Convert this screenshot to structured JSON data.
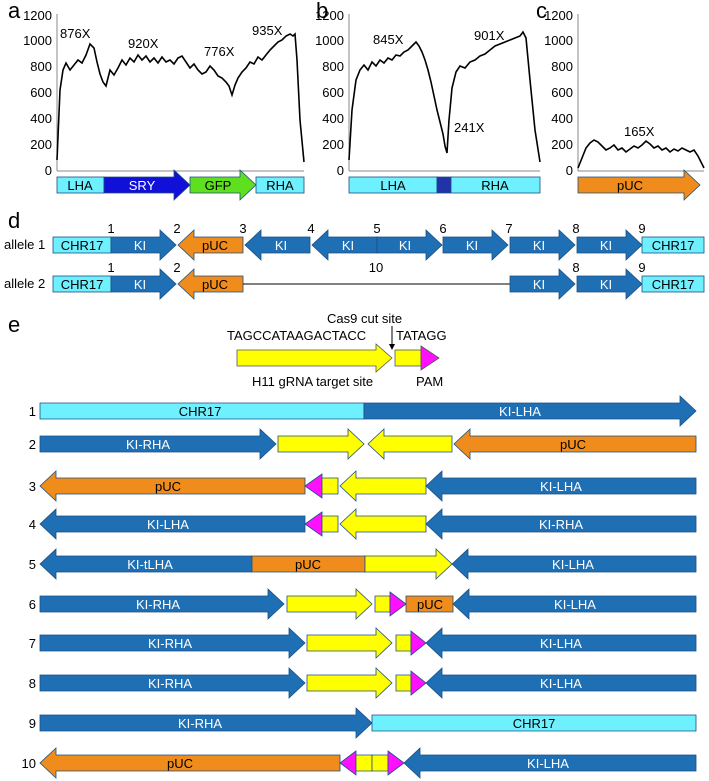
{
  "colors": {
    "cyan": "#6ff0ff",
    "blue": "#1f6fb5",
    "darkblue": "#1010d8",
    "green": "#5fe01f",
    "orange": "#f08c1c",
    "yellow": "#ffff00",
    "magenta": "#ff10ff",
    "navy": "#2233aa"
  },
  "panel_a": {
    "letter": "a",
    "yticks": [
      "0",
      "200",
      "400",
      "600",
      "800",
      "1000",
      "1200"
    ],
    "labels": [
      "876X",
      "920X",
      "776X",
      "935X"
    ],
    "segments": [
      "LHA",
      "SRY",
      "GFP",
      "RHA"
    ]
  },
  "panel_b": {
    "letter": "b",
    "yticks": [
      "0",
      "200",
      "400",
      "600",
      "800",
      "1000",
      "1200"
    ],
    "labels": [
      "845X",
      "901X",
      "241X"
    ],
    "segments": [
      "LHA",
      "RHA"
    ]
  },
  "panel_c": {
    "letter": "c",
    "yticks": [
      "0",
      "200",
      "400",
      "600",
      "800",
      "1000",
      "1200"
    ],
    "labels": [
      "165X"
    ],
    "segments": [
      "pUC"
    ]
  },
  "panel_d": {
    "letter": "d",
    "allele1": {
      "label": "allele 1",
      "blocks": [
        "CHR17",
        "KI",
        "pUC",
        "KI",
        "KI",
        "KI",
        "KI",
        "KI",
        "KI",
        "CHR17"
      ],
      "numbers": [
        "1",
        "2",
        "3",
        "4",
        "5",
        "6",
        "7",
        "8",
        "9"
      ]
    },
    "allele2": {
      "label": "allele 2",
      "blocks": [
        "CHR17",
        "KI",
        "pUC",
        "KI",
        "KI",
        "CHR17"
      ],
      "numbers": [
        "1",
        "2",
        "10",
        "8",
        "9"
      ]
    }
  },
  "panel_e": {
    "letter": "e",
    "cas9_label": "Cas9 cut site",
    "seq_left": "TAGCCATAAGACTACC",
    "seq_right": "TATAGG",
    "target_label": "H11 gRNA target site",
    "pam_label": "PAM",
    "rows": [
      {
        "num": "1",
        "labels": [
          "CHR17",
          "KI-LHA"
        ]
      },
      {
        "num": "2",
        "labels": [
          "KI-RHA",
          "pUC"
        ]
      },
      {
        "num": "3",
        "labels": [
          "pUC",
          "KI-LHA"
        ]
      },
      {
        "num": "4",
        "labels": [
          "KI-LHA",
          "KI-RHA"
        ]
      },
      {
        "num": "5",
        "labels": [
          "KI-tLHA",
          "pUC",
          "KI-LHA"
        ]
      },
      {
        "num": "6",
        "labels": [
          "KI-RHA",
          "pUC",
          "KI-LHA"
        ]
      },
      {
        "num": "7",
        "labels": [
          "KI-RHA",
          "KI-LHA"
        ]
      },
      {
        "num": "8",
        "labels": [
          "KI-RHA",
          "KI-LHA"
        ]
      },
      {
        "num": "9",
        "labels": [
          "KI-RHA",
          "CHR17"
        ]
      },
      {
        "num": "10",
        "labels": [
          "pUC",
          "KI-LHA"
        ]
      }
    ]
  }
}
